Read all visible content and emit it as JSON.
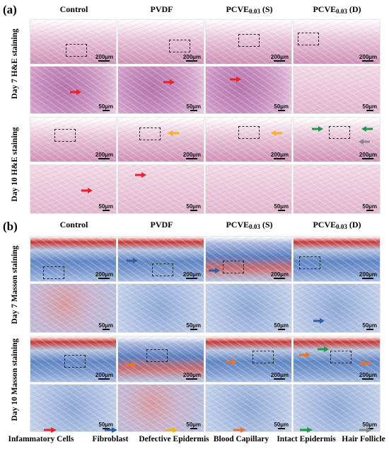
{
  "panels": [
    {
      "label": "(a)",
      "columns": [
        "Control",
        "PVDF",
        "PCVE0.03 (S)",
        "PCVE0.03 (D)"
      ],
      "row_labels": [
        "Day 7 H&E staining",
        "Day 10 H&E staining"
      ],
      "scale_low": "200µm",
      "scale_high": "50µm"
    },
    {
      "label": "(b)",
      "columns": [
        "Control",
        "PVDF",
        "PCVE0.03 (S)",
        "PCVE0.03 (D)"
      ],
      "row_labels": [
        "Day 7 Masson staining",
        "Day 10 Masson staining"
      ],
      "scale_low": "200µm",
      "scale_high": "50µm"
    }
  ],
  "legend": [
    {
      "label": "Infammatory Cells",
      "color": "#e8232a"
    },
    {
      "label": "Fibroblast",
      "color": "#2e5ea8"
    },
    {
      "label": "Defective Epidermis",
      "color": "#f2b31c"
    },
    {
      "label": "Blood Capillary",
      "color": "#e9742a"
    },
    {
      "label": "Intact Epidermis",
      "color": "#1f9a48"
    },
    {
      "label": "Hair Follicle",
      "color": "#8a8a8a"
    }
  ]
}
